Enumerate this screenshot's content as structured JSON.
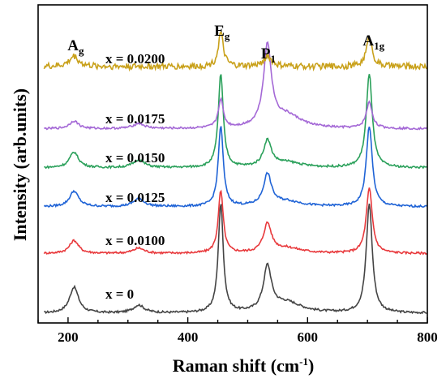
{
  "chart_data": {
    "type": "line",
    "xlabel": "Raman shift (cm",
    "xlabel_sup": "-1",
    "xlabel_close": ")",
    "ylabel": "Intensity (arb.units)",
    "xlim": [
      150,
      800
    ],
    "xticks": [
      200,
      400,
      600,
      800
    ],
    "y_ticks_shown": false,
    "legend": "inline labels",
    "peaks": [
      {
        "main": "A",
        "sub": "g",
        "x": 210
      },
      {
        "main": "E",
        "sub": "g",
        "x": 455
      },
      {
        "main": "P",
        "sub": "1",
        "x": 533
      },
      {
        "main": "A",
        "sub": "1g",
        "x": 703
      }
    ],
    "series": [
      {
        "name": "x = 0",
        "color": "#444444",
        "baseline": 0.0,
        "peak_heights": {
          "210": 0.1,
          "318": 0.03,
          "455": 0.42,
          "533": 0.17,
          "565": 0.04,
          "703": 0.42
        }
      },
      {
        "name": "x = 0.0100",
        "color": "#e8393c",
        "baseline": 0.23,
        "peak_heights": {
          "210": 0.05,
          "318": 0.02,
          "455": 0.24,
          "533": 0.11,
          "565": 0.02,
          "703": 0.25
        }
      },
      {
        "name": "x = 0.0125",
        "color": "#1f63d6",
        "baseline": 0.41,
        "peak_heights": {
          "210": 0.06,
          "318": 0.03,
          "455": 0.31,
          "533": 0.12,
          "565": 0.02,
          "703": 0.31
        }
      },
      {
        "name": "x = 0.0150",
        "color": "#2aa05a",
        "baseline": 0.56,
        "peak_heights": {
          "210": 0.06,
          "318": 0.03,
          "455": 0.36,
          "533": 0.1,
          "565": 0.02,
          "703": 0.36
        }
      },
      {
        "name": "x = 0.0175",
        "color": "#a468d6",
        "baseline": 0.71,
        "peak_heights": {
          "210": 0.03,
          "318": 0.02,
          "455": 0.11,
          "533": 0.31,
          "565": 0.05,
          "703": 0.1
        }
      },
      {
        "name": "x = 0.0200",
        "color": "#c9a11b",
        "baseline": 0.95,
        "peak_heights": {
          "210": 0.04,
          "318": 0.0,
          "455": 0.13,
          "533": 0.04,
          "565": 0.0,
          "703": 0.11
        }
      }
    ]
  }
}
